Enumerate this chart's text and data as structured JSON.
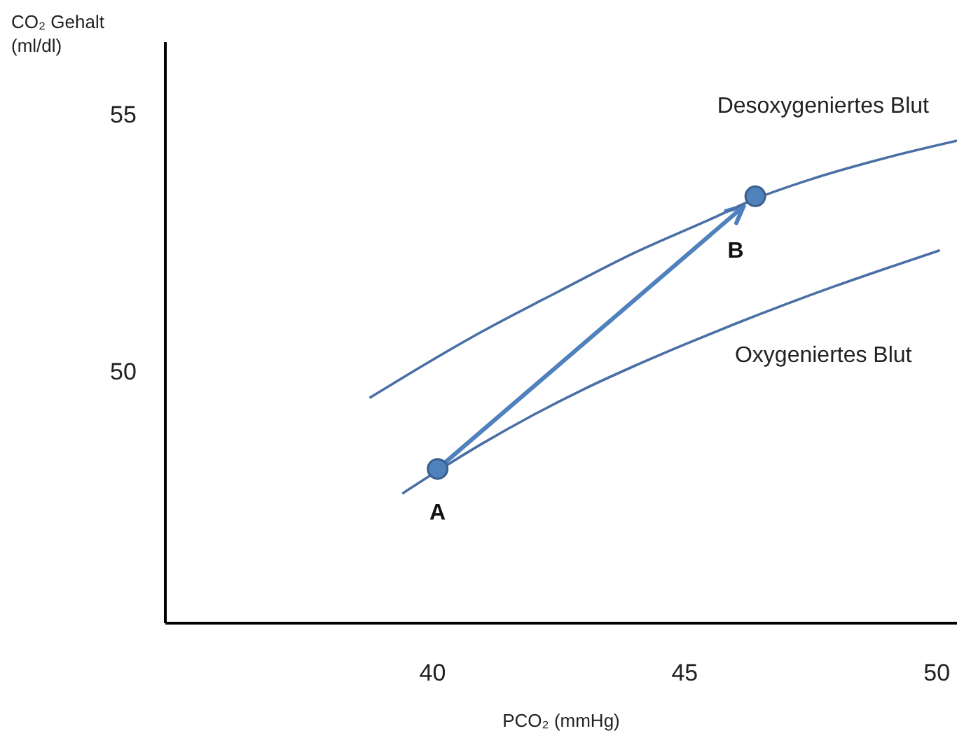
{
  "chart_data": {
    "type": "line",
    "xlabel": "PCO₂ (mmHg)",
    "ylabel": "CO₂ Gehalt (ml/dl)",
    "xlim": [
      34.7,
      50.4
    ],
    "ylim": [
      45.1,
      56.4
    ],
    "xticks": [
      40,
      45,
      50
    ],
    "yticks": [
      50,
      55
    ],
    "grid": false,
    "series": [
      {
        "name": "Desoxygeniertes Blut",
        "color": "#4a6fa5",
        "x": [
          38.75,
          40,
          41,
          42.5,
          44,
          45.5,
          46.4,
          47.5,
          49,
          50.4
        ],
        "values": [
          49.48,
          50.22,
          50.78,
          51.55,
          52.3,
          52.95,
          53.35,
          53.73,
          54.15,
          54.48
        ]
      },
      {
        "name": "Oxygeniertes Blut",
        "color": "#4a6fa5",
        "x": [
          39.4,
          40.1,
          41,
          42,
          43,
          44,
          45,
          46,
          47,
          48,
          49,
          50.06
        ],
        "values": [
          47.62,
          48.06,
          48.6,
          49.15,
          49.65,
          50.1,
          50.52,
          50.92,
          51.3,
          51.66,
          52.0,
          52.35
        ]
      },
      {
        "color": "#4f81bd",
        "type": "scatter",
        "marker": "circle",
        "x": [
          40.1,
          46.4
        ],
        "values": [
          48.1,
          53.4
        ]
      }
    ],
    "annotations": [
      {
        "text": "A",
        "x": 40.1,
        "y": 48.1
      },
      {
        "text": "B",
        "x": 46.4,
        "y": 53.4
      }
    ]
  }
}
